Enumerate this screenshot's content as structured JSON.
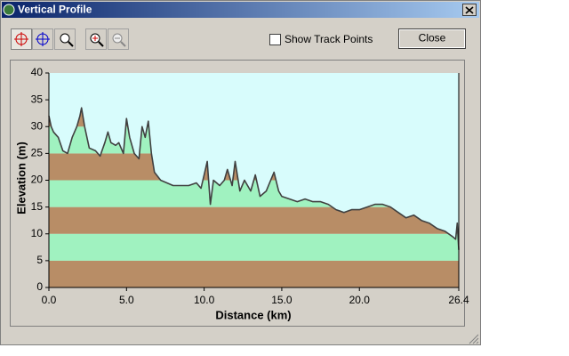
{
  "window": {
    "title": "Vertical Profile",
    "checkbox_label": "Show Track Points",
    "button_label": "Close"
  },
  "chart_data": {
    "type": "area",
    "x_label": "Distance   (km)",
    "y_label": "Elevation (m)",
    "x": [
      0.0,
      0.15,
      0.3,
      0.6,
      0.9,
      1.2,
      1.5,
      1.8,
      2.0,
      2.1,
      2.3,
      2.6,
      3.0,
      3.3,
      3.6,
      3.8,
      4.0,
      4.3,
      4.5,
      4.8,
      5.0,
      5.2,
      5.5,
      5.8,
      6.0,
      6.2,
      6.4,
      6.6,
      6.8,
      7.2,
      7.6,
      8.0,
      8.5,
      9.0,
      9.5,
      9.8,
      10.0,
      10.2,
      10.4,
      10.6,
      11.0,
      11.3,
      11.5,
      11.8,
      12.0,
      12.3,
      12.6,
      13.0,
      13.3,
      13.6,
      14.0,
      14.5,
      14.8,
      15.0,
      15.5,
      16.0,
      16.5,
      17.0,
      17.5,
      18.0,
      18.5,
      19.0,
      19.5,
      20.0,
      20.5,
      21.0,
      21.5,
      22.0,
      22.5,
      23.0,
      23.5,
      24.0,
      24.5,
      25.0,
      25.5,
      26.0,
      26.2,
      26.3,
      26.4
    ],
    "values": [
      32,
      30,
      29,
      28,
      25.5,
      25,
      28,
      30,
      32,
      33.5,
      30,
      26,
      25.5,
      24.5,
      27,
      29,
      27,
      26.5,
      27,
      25,
      31.5,
      28,
      25,
      24,
      30,
      28,
      31,
      25,
      21.5,
      20,
      19.5,
      19,
      19,
      19,
      19.5,
      18.5,
      21,
      23.5,
      15.5,
      20,
      19,
      20,
      22,
      19,
      23.5,
      18,
      20,
      18,
      21,
      17,
      18,
      21.5,
      18,
      17,
      16.5,
      16,
      16.5,
      16,
      16,
      15.5,
      14.5,
      14,
      14.5,
      14.5,
      15,
      15.5,
      15.5,
      15,
      14,
      13,
      13.5,
      12.5,
      12,
      11,
      10.5,
      9.5,
      9,
      12,
      7
    ],
    "color": "#404040",
    "background": "#d8fcfc",
    "band_colors": [
      "#b88d66",
      "#a0f2c0"
    ],
    "xlim": [
      0,
      26.4
    ],
    "ylim": [
      0,
      40
    ],
    "xticks": [
      {
        "value": 0,
        "label": "0.0"
      },
      {
        "value": 5,
        "label": "5.0"
      },
      {
        "value": 10,
        "label": "10.0"
      },
      {
        "value": 15,
        "label": "15.0"
      },
      {
        "value": 20,
        "label": "20.0"
      },
      26.4
    ],
    "yticks": [
      0,
      5,
      10,
      15,
      20,
      25,
      30,
      35,
      40
    ]
  }
}
